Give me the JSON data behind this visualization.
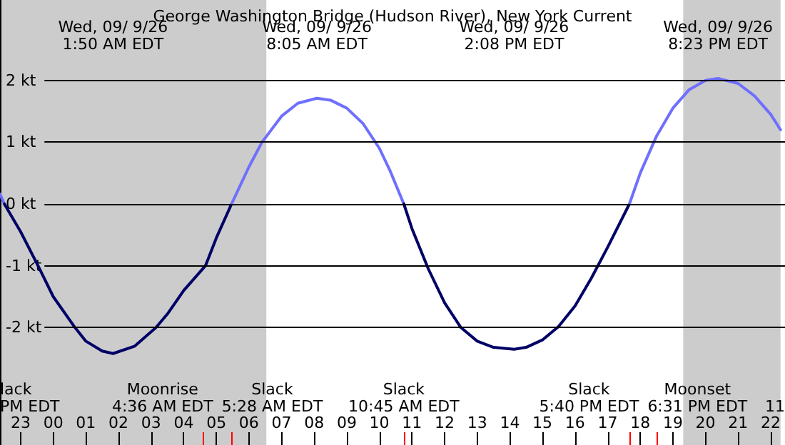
{
  "chart_data": {
    "type": "line",
    "title": "George Washington Bridge (Hudson River), New York Current",
    "series": [
      {
        "color": "#6f6fff",
        "x": [
          "--09-08T22:22",
          "--09-08T22:30"
        ],
        "values": [
          0.16,
          0
        ]
      },
      {
        "color": "#000066",
        "x": [
          "--09-08T22:30",
          "--09-08T23:00",
          "--09-08T23:32",
          "--09-09T00:00",
          "--09-09T00:40",
          "--09-09T01:00",
          "--09-09T01:30",
          "--09-09T01:50",
          "--09-09T02:30",
          "--09-09T03:09",
          "--09-09T03:30",
          "--09-09T04:00",
          "--09-09T04:40",
          "--09-09T05:00",
          "--09-09T05:28"
        ],
        "values": [
          0,
          -0.45,
          -1.0,
          -1.5,
          -2.0,
          -2.22,
          -2.38,
          -2.42,
          -2.3,
          -2.0,
          -1.78,
          -1.4,
          -1.0,
          -0.55,
          0
        ]
      },
      {
        "color": "#6f6fff",
        "x": [
          "--09-09T05:28",
          "--09-09T06:00",
          "--09-09T06:24",
          "--09-09T07:00",
          "--09-09T07:30",
          "--09-09T08:05",
          "--09-09T08:30",
          "--09-09T09:00",
          "--09-09T09:30",
          "--09-09T10:00",
          "--09-09T10:19",
          "--09-09T10:45"
        ],
        "values": [
          0,
          0.6,
          1.0,
          1.42,
          1.63,
          1.71,
          1.68,
          1.55,
          1.3,
          0.9,
          0.55,
          0
        ]
      },
      {
        "color": "#000066",
        "x": [
          "--09-09T10:45",
          "--09-09T11:00",
          "--09-09T11:30",
          "--09-09T12:00",
          "--09-09T12:30",
          "--09-09T13:00",
          "--09-09T13:30",
          "--09-09T14:08",
          "--09-09T14:30",
          "--09-09T15:00",
          "--09-09T15:30",
          "--09-09T16:00",
          "--09-09T16:30",
          "--09-09T17:00",
          "--09-09T17:40"
        ],
        "values": [
          0,
          -0.4,
          -1.05,
          -1.6,
          -2.0,
          -2.22,
          -2.32,
          -2.35,
          -2.32,
          -2.2,
          -1.98,
          -1.65,
          -1.2,
          -0.7,
          0
        ]
      },
      {
        "color": "#6f6fff",
        "x": [
          "--09-09T17:40",
          "--09-09T18:00",
          "--09-09T18:30",
          "--09-09T19:00",
          "--09-09T19:30",
          "--09-09T20:00",
          "--09-09T20:23",
          "--09-09T21:00",
          "--09-09T21:30",
          "--09-09T22:00",
          "--09-09T22:18"
        ],
        "values": [
          0,
          0.5,
          1.1,
          1.55,
          1.85,
          2.0,
          2.03,
          1.95,
          1.75,
          1.45,
          1.2
        ]
      }
    ],
    "xlim": [
      "--09-08T22:22",
      "--09-09T22:18"
    ],
    "xticks": [
      {
        "value": "--09-08T23:00",
        "label": "23"
      },
      {
        "value": "--09-09T00:00",
        "label": "00"
      },
      {
        "value": "--09-09T01:00",
        "label": "01"
      },
      {
        "value": "--09-09T02:00",
        "label": "02"
      },
      {
        "value": "--09-09T03:00",
        "label": "03"
      },
      {
        "value": "--09-09T04:00",
        "label": "04"
      },
      {
        "value": "--09-09T05:00",
        "label": "05"
      },
      {
        "value": "--09-09T06:00",
        "label": "06"
      },
      {
        "value": "--09-09T07:00",
        "label": "07"
      },
      {
        "value": "--09-09T08:00",
        "label": "08"
      },
      {
        "value": "--09-09T09:00",
        "label": "09"
      },
      {
        "value": "--09-09T10:00",
        "label": "10"
      },
      {
        "value": "--09-09T11:00",
        "label": "11"
      },
      {
        "value": "--09-09T12:00",
        "label": "12"
      },
      {
        "value": "--09-09T13:00",
        "label": "13"
      },
      {
        "value": "--09-09T14:00",
        "label": "14"
      },
      {
        "value": "--09-09T15:00",
        "label": "15"
      },
      {
        "value": "--09-09T16:00",
        "label": "16"
      },
      {
        "value": "--09-09T17:00",
        "label": "17"
      },
      {
        "value": "--09-09T18:00",
        "label": "18"
      },
      {
        "value": "--09-09T19:00",
        "label": "19"
      },
      {
        "value": "--09-09T20:00",
        "label": "20"
      },
      {
        "value": "--09-09T21:00",
        "label": "21"
      },
      {
        "value": "--09-09T22:00",
        "label": "22"
      }
    ],
    "ylim": [
      -3.9,
      3.3
    ],
    "yticks": [
      {
        "value": -2,
        "label": "-2 kt"
      },
      {
        "value": -1,
        "label": "-1 kt"
      },
      {
        "value": 0,
        "label": "0 kt"
      },
      {
        "value": 1,
        "label": "1 kt"
      },
      {
        "value": 2,
        "label": "2 kt"
      }
    ],
    "grid": "y",
    "marker": "none",
    "line_style": "solid",
    "bands": [
      {
        "axis": "x",
        "from": "--09-08T22:22",
        "to": "--09-09T06:32",
        "color": "#cccccc"
      },
      {
        "axis": "x",
        "from": "--09-09T19:19",
        "to": "--09-09T22:18",
        "color": "#cccccc"
      }
    ],
    "ref_lines": [
      {
        "axis": "x",
        "value": "--09-09T04:36",
        "label": "Moonrise\n4:36 AM EDT",
        "color": "#ff0000"
      },
      {
        "axis": "x",
        "value": "--09-09T05:28",
        "label": "Slack\n5:28 AM EDT",
        "color": "#ff0000"
      },
      {
        "axis": "x",
        "value": "--09-09T10:45",
        "label": "Slack\n10:45 AM EDT",
        "color": "#ff0000"
      },
      {
        "axis": "x",
        "value": "--09-09T17:40",
        "label": "Slack\n5:40 PM EDT",
        "color": "#ff0000"
      },
      {
        "axis": "x",
        "value": "--09-09T18:31",
        "label": "Moonset\n6:31 PM EDT",
        "color": "#ff0000"
      }
    ],
    "annotations": [
      "Wed, 09/ 9/26\n1:50 AM EDT",
      "Wed, 09/ 9/26\n8:05 AM EDT",
      "Wed, 09/ 9/26\n2:08 PM EDT",
      "Wed, 09/ 9/26\n8:23 PM EDT",
      "lack\nPM EDT",
      "11"
    ]
  }
}
